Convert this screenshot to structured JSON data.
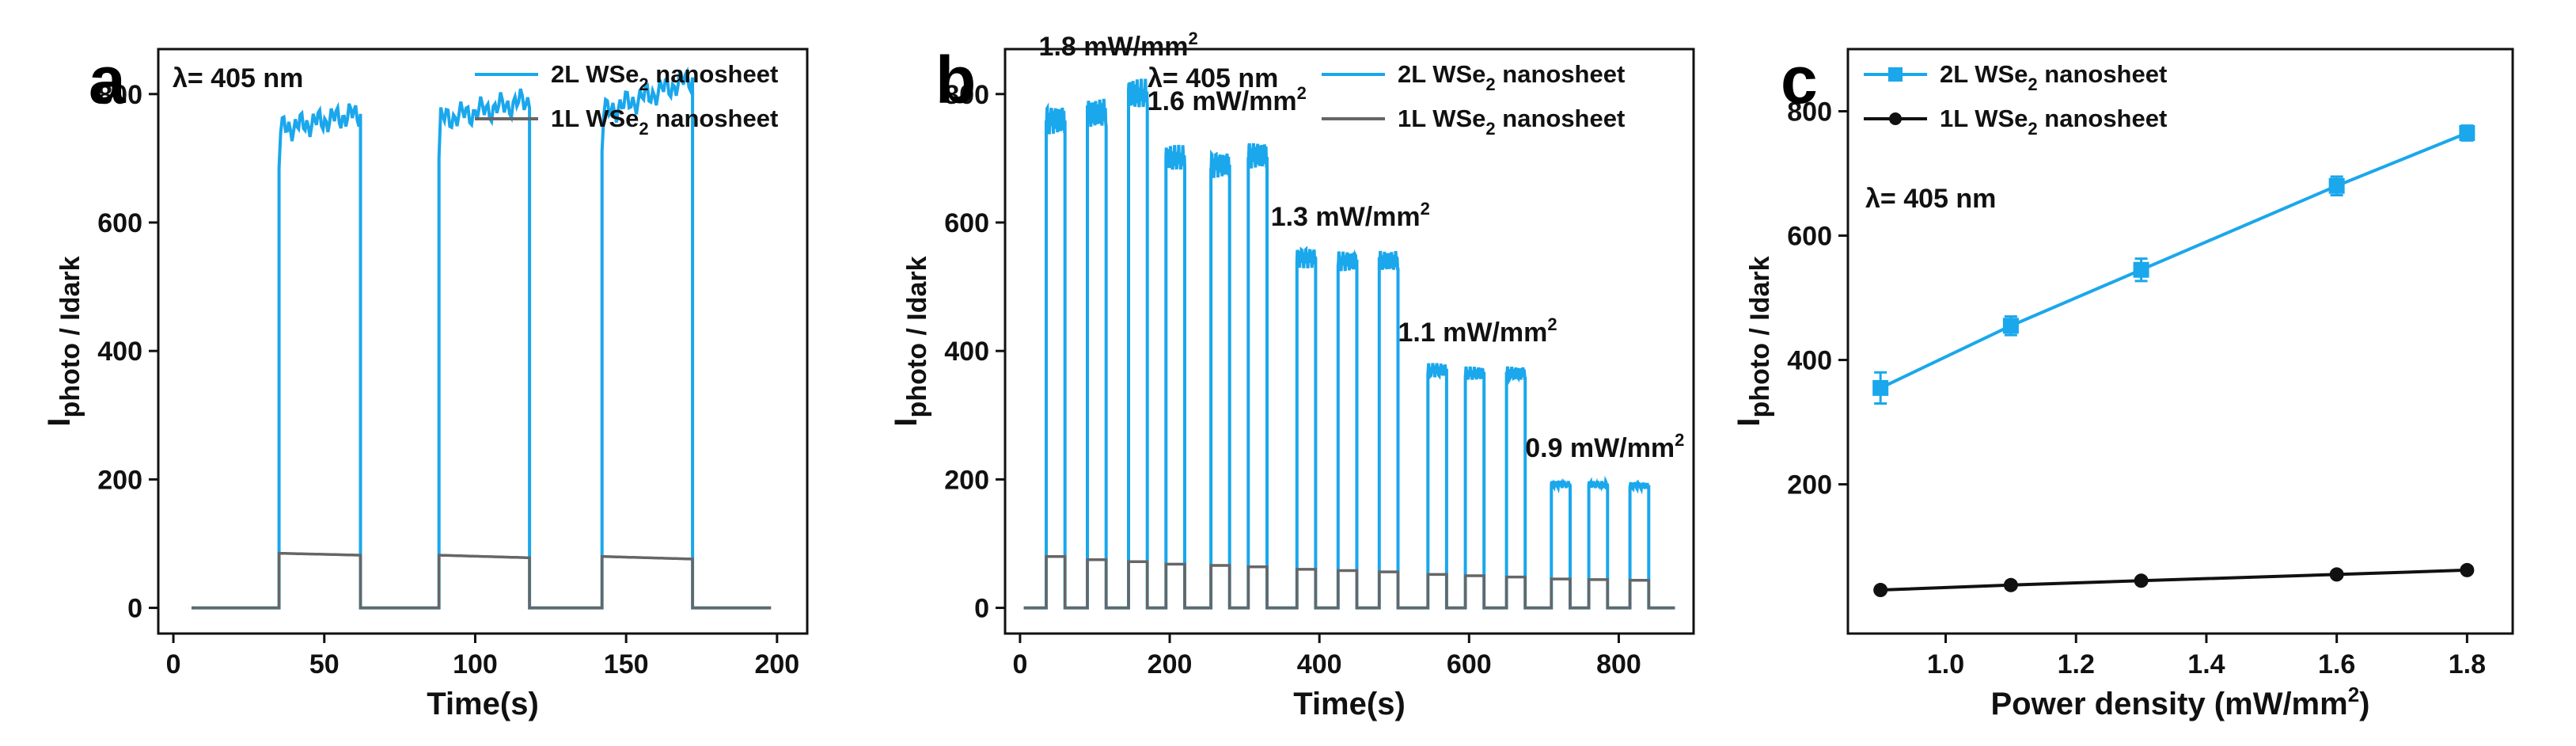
{
  "chart_data": [
    {
      "panel": "a",
      "type": "line",
      "title": "",
      "xlabel": "Time(s)",
      "ylabel": "I",
      "ylabel_sub": "photo / I",
      "ylabel_sub2": "dark",
      "xlim": [
        -5,
        210
      ],
      "ylim": [
        -40,
        870
      ],
      "xticks": [
        "0",
        "50",
        "100",
        "150",
        "200"
      ],
      "xtick_values": [
        0,
        50,
        100,
        150,
        200
      ],
      "yticks": [
        "0",
        "200",
        "400",
        "600",
        "800"
      ],
      "ytick_values": [
        0,
        200,
        400,
        600,
        800
      ],
      "wavelength": "λ= 405 nm",
      "series": [
        {
          "name": "2L WSe",
          "name_sub": "2",
          "name_rest": " nanosheet",
          "color": "#1aa7ec",
          "pulses": [
            [
              35,
              62,
              745,
              770
            ],
            [
              88,
              118,
              760,
              790
            ],
            [
              142,
              172,
              770,
              825
            ]
          ]
        },
        {
          "name": "1L WSe",
          "name_sub": "2",
          "name_rest": " nanosheet",
          "color": "#666666",
          "pulses": [
            [
              35,
              62,
              85,
              82
            ],
            [
              88,
              118,
              82,
              78
            ],
            [
              142,
              172,
              80,
              76
            ]
          ]
        }
      ],
      "time_range": [
        6,
        198
      ]
    },
    {
      "panel": "b",
      "type": "line",
      "title": "",
      "xlabel": "Time(s)",
      "ylabel": "I",
      "ylabel_sub": "photo / I",
      "ylabel_sub2": "dark",
      "xlim": [
        -20,
        900
      ],
      "ylim": [
        -40,
        870
      ],
      "xticks": [
        "0",
        "200",
        "400",
        "600",
        "800"
      ],
      "xtick_values": [
        0,
        200,
        400,
        600,
        800
      ],
      "yticks": [
        "0",
        "200",
        "400",
        "600",
        "800"
      ],
      "ytick_values": [
        0,
        200,
        400,
        600,
        800
      ],
      "wavelength": "λ= 405 nm",
      "annotations": [
        {
          "text": "1.8 mW/mm",
          "sup": "2",
          "x": 25,
          "y": 860
        },
        {
          "text": "1.6 mW/mm",
          "sup": "2",
          "x": 170,
          "y": 775
        },
        {
          "text": "1.3 mW/mm",
          "sup": "2",
          "x": 335,
          "y": 595
        },
        {
          "text": "1.1 mW/mm",
          "sup": "2",
          "x": 505,
          "y": 415
        },
        {
          "text": "0.9 mW/mm",
          "sup": "2",
          "x": 675,
          "y": 235
        }
      ],
      "series": [
        {
          "name": "2L WSe",
          "name_sub": "2",
          "name_rest": " nanosheet",
          "color": "#1aa7ec",
          "pulses": [
            [
              35,
              60,
              760
            ],
            [
              90,
              115,
              770
            ],
            [
              145,
              170,
              800
            ],
            [
              195,
              220,
              700
            ],
            [
              255,
              280,
              690
            ],
            [
              305,
              330,
              705
            ],
            [
              370,
              395,
              545
            ],
            [
              425,
              450,
              540
            ],
            [
              480,
              505,
              540
            ],
            [
              545,
              570,
              370
            ],
            [
              595,
              620,
              365
            ],
            [
              650,
              675,
              365
            ],
            [
              710,
              735,
              192
            ],
            [
              760,
              785,
              192
            ],
            [
              815,
              840,
              190
            ]
          ]
        },
        {
          "name": "1L WSe",
          "name_sub": "2",
          "name_rest": " nanosheet",
          "color": "#666666",
          "pulses": [
            [
              35,
              60,
              80
            ],
            [
              90,
              115,
              75
            ],
            [
              145,
              170,
              72
            ],
            [
              195,
              220,
              68
            ],
            [
              255,
              280,
              66
            ],
            [
              305,
              330,
              64
            ],
            [
              370,
              395,
              60
            ],
            [
              425,
              450,
              58
            ],
            [
              480,
              505,
              56
            ],
            [
              545,
              570,
              52
            ],
            [
              595,
              620,
              50
            ],
            [
              650,
              675,
              48
            ],
            [
              710,
              735,
              45
            ],
            [
              760,
              785,
              44
            ],
            [
              815,
              840,
              43
            ]
          ]
        }
      ],
      "time_range": [
        5,
        875
      ]
    },
    {
      "panel": "c",
      "type": "line",
      "title": "",
      "xlabel": "Power density (mW/mm",
      "xlabel_sup": "2",
      "xlabel_end": ")",
      "ylabel": "I",
      "ylabel_sub": "photo / I",
      "ylabel_sub2": "dark",
      "xlim": [
        0.85,
        1.87
      ],
      "ylim": [
        -40,
        900
      ],
      "xticks": [
        "1.0",
        "1.2",
        "1.4",
        "1.6",
        "1.8"
      ],
      "xtick_values": [
        1.0,
        1.2,
        1.4,
        1.6,
        1.8
      ],
      "yticks": [
        "200",
        "400",
        "600",
        "800"
      ],
      "ytick_values": [
        200,
        400,
        600,
        800
      ],
      "wavelength": "λ= 405 nm",
      "series": [
        {
          "name": "2L WSe",
          "name_sub": "2",
          "name_rest": " nanosheet",
          "color": "#1aa7ec",
          "marker": "square",
          "x": [
            0.9,
            1.1,
            1.3,
            1.6,
            1.8
          ],
          "y": [
            355,
            455,
            545,
            680,
            765
          ],
          "err": [
            25,
            15,
            18,
            15,
            12
          ]
        },
        {
          "name": "1L WSe",
          "name_sub": "2",
          "name_rest": " nanosheet",
          "color": "#111111",
          "marker": "circle",
          "x": [
            0.9,
            1.1,
            1.3,
            1.6,
            1.8
          ],
          "y": [
            30,
            38,
            45,
            55,
            62
          ],
          "err": [
            3,
            3,
            3,
            3,
            3
          ]
        }
      ]
    }
  ],
  "panel_labels": [
    "a",
    "b",
    "c"
  ]
}
